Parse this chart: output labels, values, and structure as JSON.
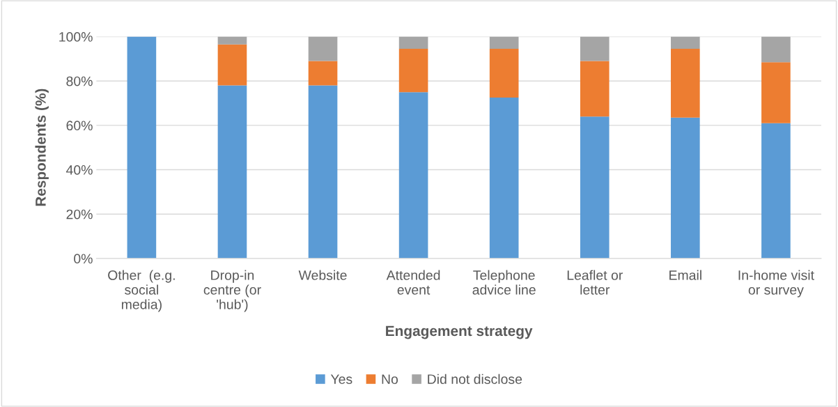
{
  "chart_data": {
    "type": "bar",
    "stacked": true,
    "xlabel": "Engagement strategy",
    "ylabel": "Respondents (%)",
    "categories": [
      "Other  (e.g.\nsocial\nmedia)",
      "Drop-in\ncentre (or\n'hub')",
      "Website",
      "Attended\nevent",
      "Telephone\nadvice line",
      "Leaflet or\nletter",
      "Email",
      "In-home visit\nor survey"
    ],
    "series": [
      {
        "name": "Yes",
        "color": "#5b9bd5",
        "values": [
          100,
          78,
          78,
          75,
          72.5,
          64,
          63.5,
          61
        ]
      },
      {
        "name": "No",
        "color": "#ed7d31",
        "values": [
          0,
          18.5,
          11,
          19.5,
          22,
          25,
          31,
          27.5
        ]
      },
      {
        "name": "Did not disclose",
        "color": "#a5a5a5",
        "values": [
          0,
          3.5,
          11,
          5.5,
          5.5,
          11,
          5.5,
          11.5
        ]
      }
    ],
    "ylim": [
      0,
      100
    ],
    "yticks": [
      {
        "value": 0,
        "label": "0%"
      },
      {
        "value": 20,
        "label": "20%"
      },
      {
        "value": 40,
        "label": "40%"
      },
      {
        "value": 60,
        "label": "60%"
      },
      {
        "value": 80,
        "label": "80%"
      },
      {
        "value": 100,
        "label": "100%"
      }
    ],
    "grid": "y",
    "legend": "bottom"
  }
}
